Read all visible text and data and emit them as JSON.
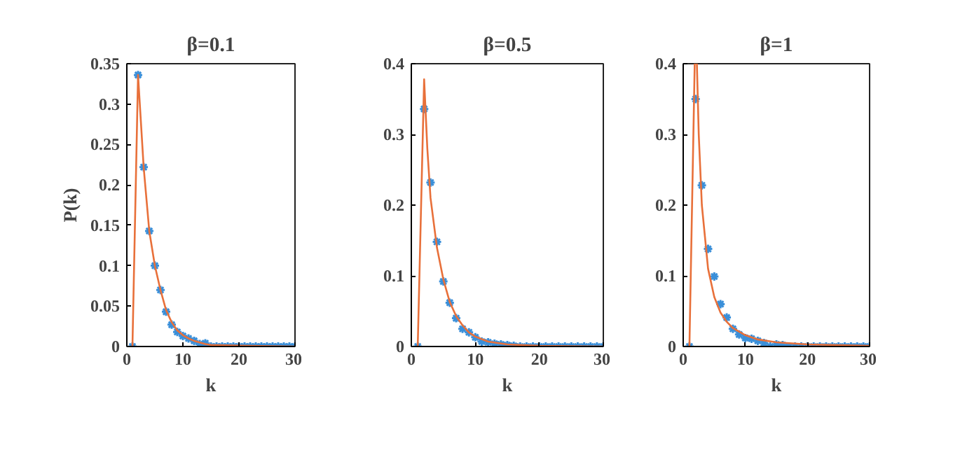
{
  "chart_data": [
    {
      "type": "scatter",
      "title": "β=0.1",
      "xlabel": "k",
      "ylabel": "P(k)",
      "xlim": [
        0,
        30
      ],
      "xticks": [
        0,
        10,
        20,
        30
      ],
      "ylim": [
        0,
        0.35
      ],
      "yticks": [
        0,
        0.05,
        0.1,
        0.15,
        0.2,
        0.25,
        0.3,
        0.35
      ],
      "grid": false,
      "series": [
        {
          "marker": "cross",
          "color": "#3a8fd9",
          "x": [
            1,
            2,
            3,
            4,
            5,
            6,
            7,
            8,
            9,
            10,
            11,
            12,
            13,
            14,
            15,
            16,
            17,
            18,
            19,
            20,
            21,
            22,
            23,
            24,
            25,
            26,
            27,
            28,
            29,
            30
          ],
          "values": [
            0,
            0.336,
            0.222,
            0.143,
            0.1,
            0.07,
            0.043,
            0.027,
            0.018,
            0.013,
            0.01,
            0.007,
            0.003,
            0.004,
            0,
            0,
            0,
            0,
            0,
            0,
            0,
            0,
            0,
            0,
            0,
            0,
            0,
            0,
            0,
            0
          ]
        },
        {
          "type": "line",
          "color": "#e8703a",
          "x": [
            1,
            2,
            3,
            4,
            5,
            6,
            7,
            8,
            9,
            10,
            11,
            12,
            13,
            14,
            15,
            20,
            30
          ],
          "values": [
            0,
            0.336,
            0.222,
            0.143,
            0.1,
            0.07,
            0.045,
            0.03,
            0.02,
            0.014,
            0.01,
            0.007,
            0.005,
            0.003,
            0.002,
            0.001,
            0
          ]
        }
      ]
    },
    {
      "type": "scatter",
      "title": "β=0.5",
      "xlabel": "k",
      "xlim": [
        0,
        30
      ],
      "xticks": [
        0,
        10,
        20,
        30
      ],
      "ylim": [
        0,
        0.4
      ],
      "yticks": [
        0,
        0.1,
        0.2,
        0.3,
        0.4
      ],
      "grid": false,
      "series": [
        {
          "marker": "cross",
          "color": "#3a8fd9",
          "x": [
            1,
            2,
            3,
            4,
            5,
            6,
            7,
            8,
            9,
            10,
            11,
            12,
            13,
            14,
            15,
            16,
            17,
            18,
            19,
            20,
            21,
            22,
            23,
            24,
            25,
            26,
            27,
            28,
            29,
            30
          ],
          "values": [
            0,
            0.336,
            0.232,
            0.148,
            0.092,
            0.062,
            0.04,
            0.025,
            0.02,
            0.013,
            0.007,
            0.006,
            0.004,
            0.003,
            0.002,
            0.001,
            0,
            0,
            0,
            0,
            0,
            0,
            0,
            0,
            0,
            0,
            0,
            0,
            0,
            0
          ]
        },
        {
          "type": "line",
          "color": "#e8703a",
          "x": [
            1,
            2,
            2.5,
            3,
            4,
            5,
            6,
            7,
            8,
            9,
            10,
            12,
            15,
            20,
            30
          ],
          "values": [
            0,
            0.378,
            0.28,
            0.21,
            0.14,
            0.095,
            0.063,
            0.043,
            0.03,
            0.02,
            0.014,
            0.007,
            0.003,
            0.001,
            0
          ]
        }
      ]
    },
    {
      "type": "scatter",
      "title": "β=1",
      "xlabel": "k",
      "xlim": [
        0,
        30
      ],
      "xticks": [
        0,
        10,
        20,
        30
      ],
      "ylim": [
        0,
        0.4
      ],
      "yticks": [
        0,
        0.1,
        0.2,
        0.3,
        0.4
      ],
      "grid": false,
      "series": [
        {
          "marker": "cross",
          "color": "#3a8fd9",
          "x": [
            1,
            2,
            3,
            4,
            5,
            6,
            7,
            8,
            9,
            10,
            11,
            12,
            13,
            14,
            15,
            16,
            17,
            18,
            19,
            20,
            21,
            22,
            23,
            24,
            25,
            26,
            27,
            28,
            29,
            30
          ],
          "values": [
            0,
            0.35,
            0.228,
            0.138,
            0.099,
            0.06,
            0.041,
            0.025,
            0.017,
            0.012,
            0.011,
            0.008,
            0.005,
            0,
            0.003,
            0.002,
            0,
            0,
            0,
            0,
            0,
            0,
            0,
            0,
            0,
            0,
            0,
            0,
            0,
            0
          ]
        },
        {
          "type": "line",
          "color": "#e8703a",
          "x": [
            1,
            1.85,
            2.2,
            2.5,
            3,
            4,
            5,
            6,
            7,
            8,
            10,
            12,
            15,
            20,
            30
          ],
          "values": [
            0,
            0.4,
            0.4,
            0.3,
            0.2,
            0.11,
            0.07,
            0.048,
            0.035,
            0.026,
            0.016,
            0.01,
            0.006,
            0.003,
            0.001
          ]
        }
      ]
    }
  ]
}
